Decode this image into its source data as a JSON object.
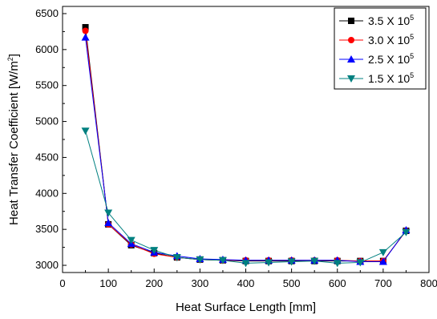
{
  "chart_data": {
    "type": "line",
    "xlabel": "Heat Surface Length [mm]",
    "ylabel": "Heat Transfer Coefficient [W/m",
    "ylabel_sup": "2",
    "ylabel_end": "]",
    "xlim": [
      0,
      800
    ],
    "ylim": [
      2900,
      6600
    ],
    "xticks": [
      0,
      100,
      200,
      300,
      400,
      500,
      600,
      700,
      800
    ],
    "yticks": [
      3000,
      3500,
      4000,
      4500,
      5000,
      5500,
      6000,
      6500
    ],
    "grid": false,
    "legend_position": "top-right",
    "x": [
      50,
      100,
      150,
      200,
      250,
      300,
      350,
      400,
      450,
      500,
      550,
      600,
      650,
      700,
      750
    ],
    "series": [
      {
        "name": "3.5 X 10",
        "name_sup": "5",
        "color": "#000000",
        "marker": "square",
        "values": [
          6310,
          3570,
          3280,
          3170,
          3110,
          3080,
          3070,
          3060,
          3060,
          3060,
          3060,
          3060,
          3060,
          3060,
          3480
        ]
      },
      {
        "name": "3.0 X 10",
        "name_sup": "5",
        "color": "#ff0000",
        "marker": "circle",
        "values": [
          6260,
          3570,
          3290,
          3160,
          3110,
          3080,
          3070,
          3070,
          3070,
          3070,
          3070,
          3070,
          3060,
          3060,
          3480
        ]
      },
      {
        "name": "2.5 X 10",
        "name_sup": "5",
        "color": "#0000ff",
        "marker": "triangle-up",
        "values": [
          6170,
          3590,
          3300,
          3180,
          3130,
          3090,
          3080,
          3070,
          3070,
          3070,
          3070,
          3070,
          3050,
          3050,
          3490
        ]
      },
      {
        "name": "1.5 X 10",
        "name_sup": "5",
        "color": "#008080",
        "marker": "triangle-down",
        "values": [
          4870,
          3730,
          3350,
          3210,
          3110,
          3080,
          3070,
          3030,
          3040,
          3050,
          3060,
          3030,
          3040,
          3180,
          3460
        ]
      }
    ]
  }
}
